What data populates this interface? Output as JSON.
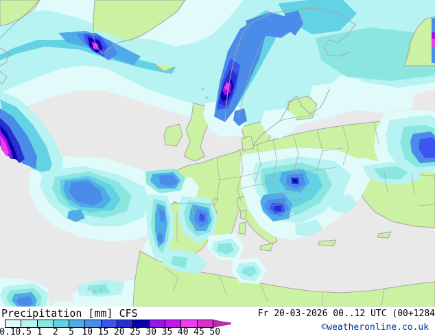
{
  "legend": {
    "label": "Precipitation [mm] CFS",
    "ticks": [
      "0.1",
      "0.5",
      "1",
      "2",
      "5",
      "10",
      "15",
      "20",
      "25",
      "30",
      "35",
      "40",
      "45",
      "50"
    ],
    "palette": [
      "#E1FAFA",
      "#B7F3F3",
      "#8BE6E0",
      "#62D2E4",
      "#50ACE8",
      "#4A8CE8",
      "#3C55EE",
      "#2630D2",
      "#0A00AC",
      "#9916E8",
      "#C318EA",
      "#EE3CEE",
      "#D633CC"
    ],
    "arrow_color": "#B62DB0"
  },
  "footer": {
    "datetime": "Fr 20-03-2026 00..12 UTC (00+1284",
    "copyright": "©weatheronline.co.uk",
    "copyright_color": "#003399"
  },
  "map": {
    "land_color": "#CBF1A2",
    "sea_color": "#E9E9E9",
    "border_color": "#A6A6A6"
  }
}
